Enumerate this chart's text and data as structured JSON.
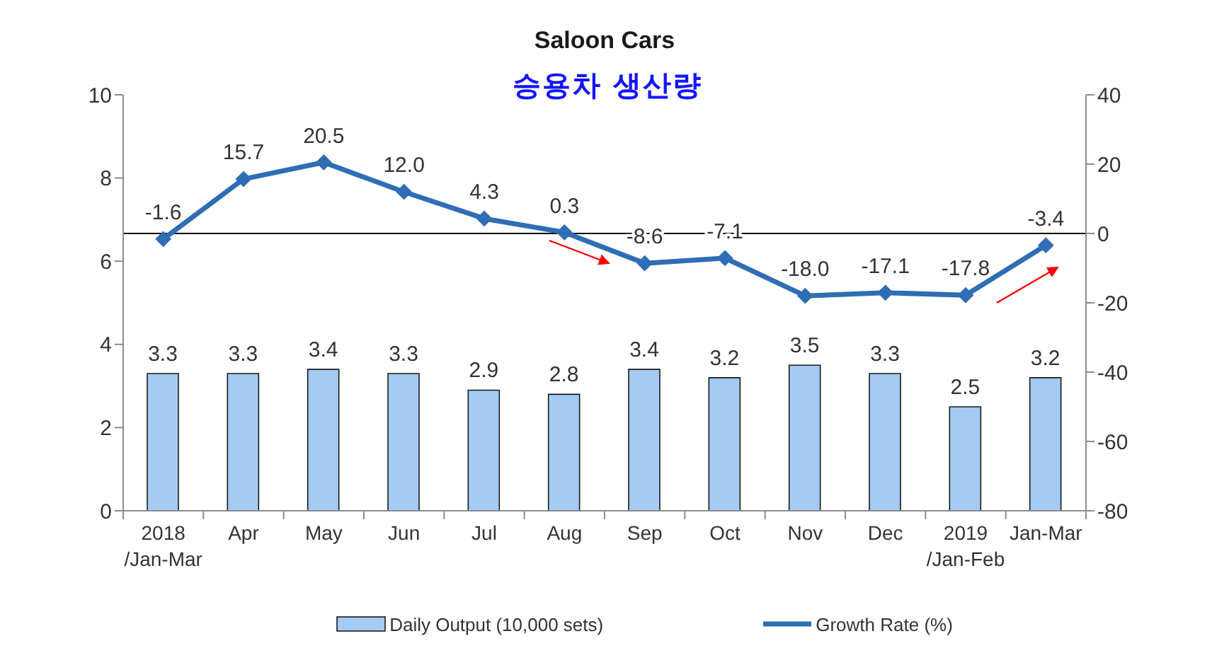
{
  "chart_data": {
    "type": "bar",
    "title": "Saloon Cars",
    "subtitle": "승용차 생산량",
    "categories": [
      "2018\n/Jan-Mar",
      "Apr",
      "May",
      "Jun",
      "Jul",
      "Aug",
      "Sep",
      "Oct",
      "Nov",
      "Dec",
      "2019\n/Jan-Feb",
      "Jan-Mar"
    ],
    "series": [
      {
        "name": "Daily Output (10,000 sets)",
        "color": "#a3cbf3",
        "values": [
          3.3,
          3.3,
          3.4,
          3.3,
          2.9,
          2.8,
          3.4,
          3.2,
          3.5,
          3.3,
          2.5,
          3.2
        ],
        "value_labels": [
          "3.3",
          "3.3",
          "3.4",
          "3.3",
          "2.9",
          "2.8",
          "3.4",
          "3.2",
          "3.5",
          "3.3",
          "2.5",
          "3.2"
        ]
      },
      {
        "name": "Growth Rate (%)",
        "type": "line",
        "axis": "y2",
        "color": "#2f6db5",
        "values": [
          -1.6,
          15.7,
          20.5,
          12.0,
          4.3,
          0.3,
          -8.6,
          -7.1,
          -18.0,
          -17.1,
          -17.8,
          -3.4
        ],
        "value_labels": [
          "-1.6",
          "15.7",
          "20.5",
          "12.0",
          "4.3",
          "0.3",
          "-8.6",
          "-7.1",
          "-18.0",
          "-17.1",
          "-17.8",
          "-3.4"
        ]
      }
    ],
    "ylim": [
      0,
      10
    ],
    "yticks": [
      0,
      2,
      4,
      6,
      8,
      10
    ],
    "y2lim": [
      -80,
      40
    ],
    "y2ticks": [
      -80,
      -60,
      -40,
      -20,
      0,
      20,
      40
    ],
    "ref_lines": [
      {
        "axis": "y2",
        "value": 0,
        "color": "#000000"
      }
    ],
    "marker": "diamond",
    "legend": "bottom"
  }
}
